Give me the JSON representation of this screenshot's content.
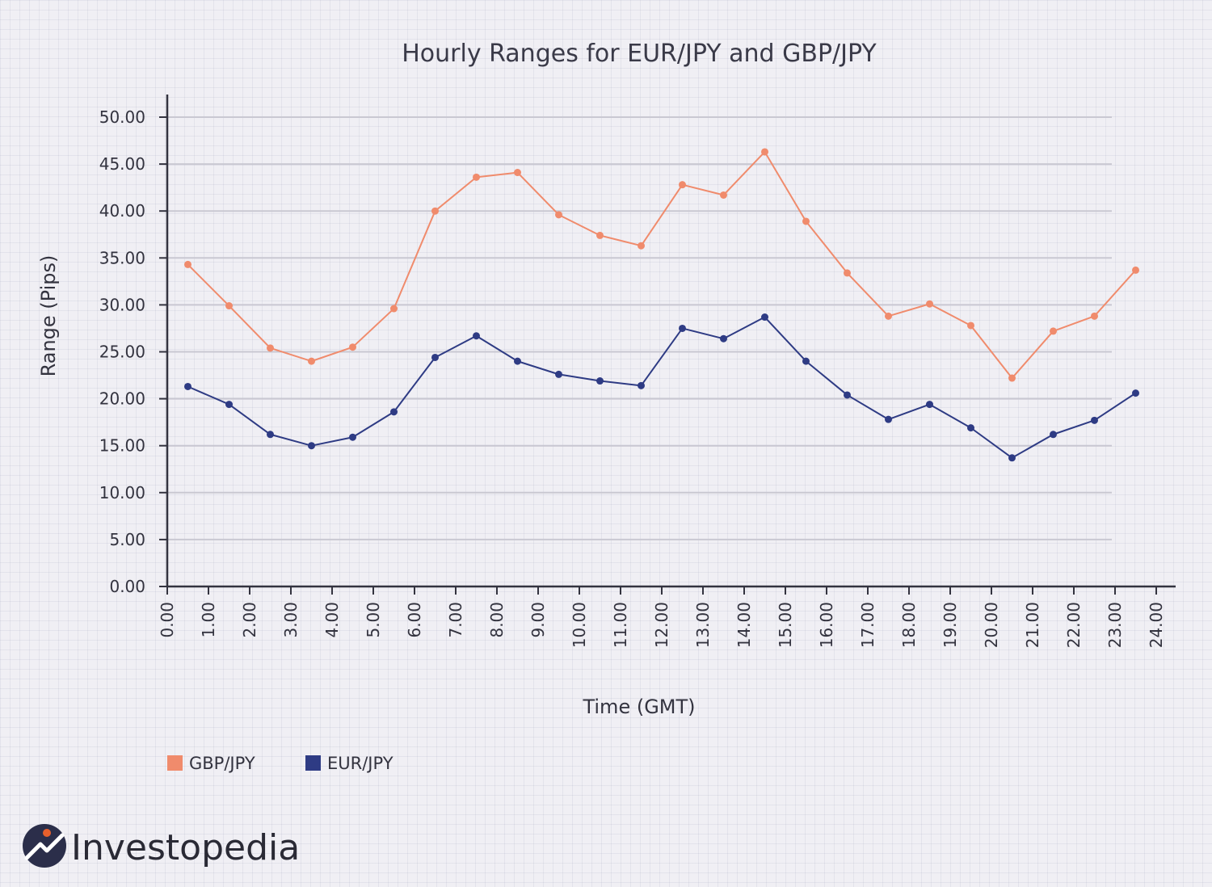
{
  "chart_data": {
    "type": "line",
    "title": "Hourly Ranges for EUR/JPY and GBP/JPY",
    "xlabel": "Time (GMT)",
    "ylabel": "Range (Pips)",
    "xlim": [
      0,
      24
    ],
    "ylim": [
      0,
      50
    ],
    "x_ticks": [
      "0.00",
      "1.00",
      "2.00",
      "3.00",
      "4.00",
      "5.00",
      "6.00",
      "7.00",
      "8.00",
      "9.00",
      "10.00",
      "11.00",
      "12.00",
      "13.00",
      "14.00",
      "15.00",
      "16.00",
      "17.00",
      "18.00",
      "19.00",
      "20.00",
      "21.00",
      "22.00",
      "23.00",
      "24.00"
    ],
    "y_ticks": [
      "0.00",
      "5.00",
      "10.00",
      "15.00",
      "20.00",
      "25.00",
      "30.00",
      "35.00",
      "40.00",
      "45.00",
      "50.00"
    ],
    "grid": "horizontal",
    "legend_position": "bottom-left",
    "x": [
      0.5,
      1.5,
      2.5,
      3.5,
      4.5,
      5.5,
      6.5,
      7.5,
      8.5,
      9.5,
      10.5,
      11.5,
      12.5,
      13.5,
      14.5,
      15.5,
      16.5,
      17.5,
      18.5,
      19.5,
      20.5,
      21.5,
      22.5,
      23.5
    ],
    "series": [
      {
        "name": "GBP/JPY",
        "color": "#f08b6c",
        "values": [
          34.3,
          29.9,
          25.4,
          24.0,
          25.5,
          29.6,
          40.0,
          43.6,
          44.1,
          39.6,
          37.4,
          36.3,
          42.8,
          41.7,
          46.3,
          38.9,
          33.4,
          28.8,
          30.1,
          27.8,
          22.2,
          27.2,
          28.8,
          33.7
        ]
      },
      {
        "name": "EUR/JPY",
        "color": "#2e3b84",
        "values": [
          21.3,
          19.4,
          16.2,
          15.0,
          15.9,
          18.6,
          24.4,
          26.7,
          24.0,
          22.6,
          21.9,
          21.4,
          27.5,
          26.4,
          28.7,
          24.0,
          20.4,
          17.8,
          19.4,
          16.9,
          13.7,
          16.2,
          17.7,
          20.6
        ]
      }
    ]
  },
  "brand": {
    "name": "Investopedia",
    "logo_dark": "#2b2e4a",
    "logo_accent": "#e8602c"
  }
}
